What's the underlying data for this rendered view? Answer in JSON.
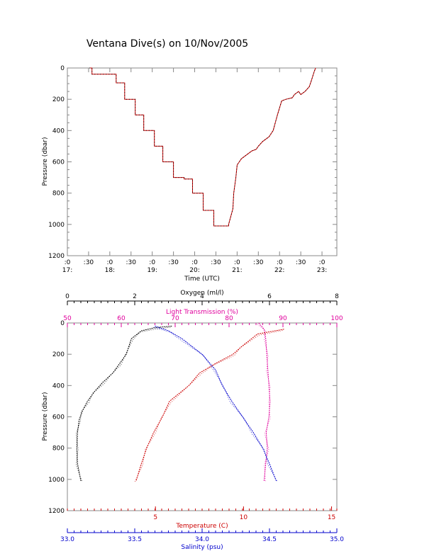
{
  "chart_data": [
    {
      "type": "line",
      "title": "Ventana Dive(s) on 10/Nov/2005",
      "xlabel": "Time (UTC)",
      "ylabel": "Pressure (dbar)",
      "xlim_hours": [
        17.0,
        23.35
      ],
      "ylim": [
        1200,
        0
      ],
      "y_inverted": true,
      "yticks": [
        0,
        200,
        400,
        600,
        800,
        1000,
        1200
      ],
      "xticks": [
        {
          "h": 17.0,
          "line1": ":0",
          "line2": "17:"
        },
        {
          "h": 17.5,
          "line1": ":30",
          "line2": ""
        },
        {
          "h": 18.0,
          "line1": ":0",
          "line2": "18:"
        },
        {
          "h": 18.5,
          "line1": ":30",
          "line2": ""
        },
        {
          "h": 19.0,
          "line1": ":0",
          "line2": "19:"
        },
        {
          "h": 19.5,
          "line1": ":30",
          "line2": ""
        },
        {
          "h": 20.0,
          "line1": ":0",
          "line2": "20:"
        },
        {
          "h": 20.5,
          "line1": ":30",
          "line2": ""
        },
        {
          "h": 21.0,
          "line1": ":0",
          "line2": "21:"
        },
        {
          "h": 21.5,
          "line1": ":30",
          "line2": ""
        },
        {
          "h": 22.0,
          "line1": ":0",
          "line2": "22:"
        },
        {
          "h": 22.5,
          "line1": ":30",
          "line2": ""
        },
        {
          "h": 23.0,
          "line1": ":0",
          "line2": "23:"
        }
      ],
      "line_color": "#cc0000",
      "series": [
        {
          "x_hours": [
            17.52,
            17.58,
            17.58,
            18.15,
            18.15,
            18.35,
            18.35,
            18.6,
            18.6,
            18.8,
            18.8,
            19.05,
            19.05,
            19.25,
            19.25,
            19.5,
            19.5,
            19.75,
            19.75,
            19.95,
            19.95,
            20.2,
            20.2,
            20.45,
            20.45,
            20.65,
            20.65,
            20.8,
            20.8,
            20.9,
            20.92,
            20.97,
            21.0,
            21.05,
            21.1,
            21.2,
            21.35,
            21.45,
            21.5,
            21.6,
            21.75,
            21.85,
            21.9,
            21.95,
            22.05,
            22.15,
            22.3,
            22.35,
            22.45,
            22.5,
            22.6,
            22.7,
            22.75,
            22.82,
            22.85
          ],
          "y": [
            0,
            0,
            40,
            40,
            95,
            95,
            200,
            200,
            300,
            300,
            400,
            400,
            500,
            500,
            600,
            600,
            700,
            700,
            710,
            710,
            800,
            800,
            910,
            910,
            1010,
            1010,
            1010,
            1010,
            1000,
            900,
            800,
            700,
            620,
            600,
            580,
            560,
            530,
            520,
            500,
            470,
            440,
            400,
            350,
            300,
            210,
            200,
            190,
            170,
            150,
            170,
            150,
            120,
            80,
            20,
            0
          ]
        }
      ]
    },
    {
      "type": "line",
      "ylabel": "Pressure (dbar)",
      "ylim": [
        1200,
        0
      ],
      "y_inverted": true,
      "yticks": [
        0,
        200,
        400,
        600,
        800,
        1000,
        1200
      ],
      "axes": {
        "oxygen": {
          "label": "Oxygen (ml/l)",
          "range": [
            0,
            8
          ],
          "ticks": [
            0,
            2,
            4,
            6,
            8
          ],
          "color": "#000000",
          "position": "top"
        },
        "light": {
          "label": "Light Transmission (%)",
          "range": [
            50,
            100
          ],
          "ticks": [
            50,
            60,
            70,
            80,
            90,
            100
          ],
          "color": "#e0009c",
          "position": "top"
        },
        "temperature": {
          "label": "Temperature (C)",
          "range": [
            0,
            15.3
          ],
          "ticks": [
            5,
            10,
            15
          ],
          "color": "#cc0000",
          "position": "bottom"
        },
        "salinity": {
          "label": "Salinity (psu)",
          "range": [
            33.0,
            35.0
          ],
          "ticks": [
            "33.0",
            "33.5",
            "34.0",
            "34.5",
            "35.0"
          ],
          "color": "#0000cc",
          "position": "bottom"
        }
      },
      "series": [
        {
          "name": "Oxygen",
          "axis": "oxygen",
          "color": "#000000",
          "points": [
            [
              3.1,
              20
            ],
            [
              2.6,
              30
            ],
            [
              2.2,
              50
            ],
            [
              1.9,
              100
            ],
            [
              1.75,
              200
            ],
            [
              1.55,
              260
            ],
            [
              1.35,
              320
            ],
            [
              1.05,
              380
            ],
            [
              0.8,
              440
            ],
            [
              0.6,
              500
            ],
            [
              0.45,
              560
            ],
            [
              0.35,
              620
            ],
            [
              0.3,
              700
            ],
            [
              0.28,
              800
            ],
            [
              0.3,
              900
            ],
            [
              0.4,
              1010
            ]
          ]
        },
        {
          "name": "Light Transmission",
          "axis": "light",
          "color": "#e0009c",
          "points": [
            [
              85.5,
              0
            ],
            [
              86.5,
              40
            ],
            [
              86.8,
              100
            ],
            [
              87.0,
              200
            ],
            [
              87.2,
              300
            ],
            [
              87.4,
              400
            ],
            [
              87.6,
              500
            ],
            [
              87.4,
              600
            ],
            [
              86.9,
              700
            ],
            [
              87.1,
              800
            ],
            [
              86.8,
              900
            ],
            [
              86.5,
              1010
            ]
          ]
        },
        {
          "name": "Temperature",
          "axis": "temperature",
          "color": "#cc0000",
          "points": [
            [
              12.3,
              40
            ],
            [
              10.8,
              70
            ],
            [
              9.9,
              150
            ],
            [
              9.4,
              200
            ],
            [
              8.4,
              260
            ],
            [
              7.5,
              320
            ],
            [
              6.9,
              400
            ],
            [
              5.8,
              500
            ],
            [
              5.4,
              600
            ],
            [
              4.9,
              700
            ],
            [
              4.5,
              800
            ],
            [
              4.2,
              900
            ],
            [
              3.9,
              1010
            ]
          ]
        },
        {
          "name": "Salinity",
          "axis": "salinity",
          "color": "#0000cc",
          "points": [
            [
              33.65,
              20
            ],
            [
              33.75,
              50
            ],
            [
              33.85,
              100
            ],
            [
              34.0,
              200
            ],
            [
              34.1,
              300
            ],
            [
              34.15,
              400
            ],
            [
              34.22,
              500
            ],
            [
              34.3,
              600
            ],
            [
              34.38,
              700
            ],
            [
              34.45,
              800
            ],
            [
              34.5,
              900
            ],
            [
              34.55,
              1010
            ]
          ]
        }
      ]
    }
  ]
}
